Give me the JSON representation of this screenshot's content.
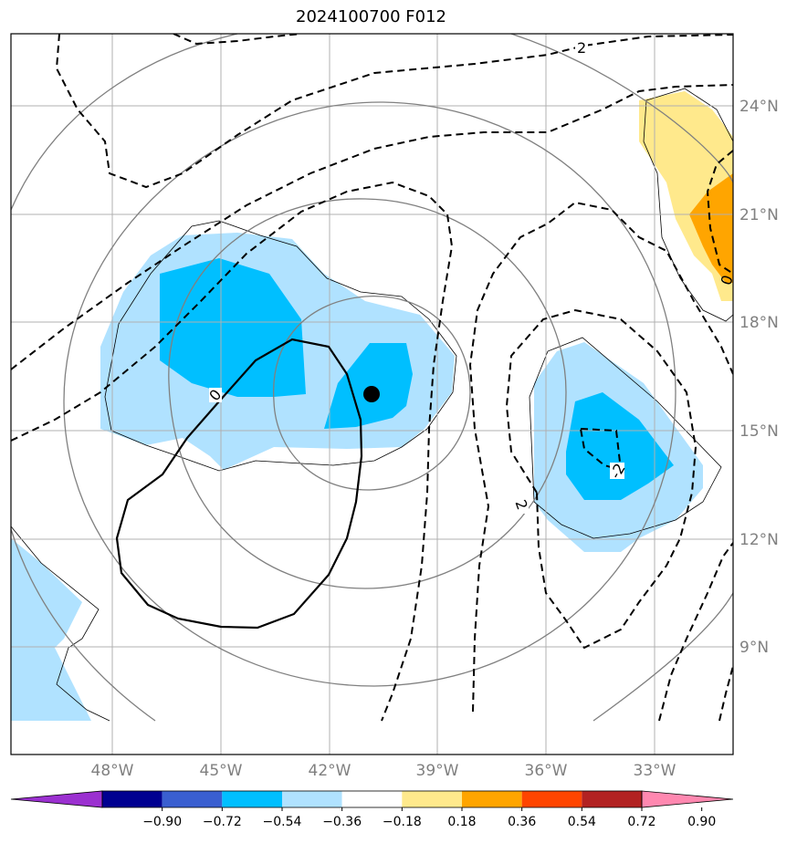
{
  "title": "2024100700 F012",
  "lon_ticks": [
    "48°W",
    "45°W",
    "42°W",
    "39°W",
    "36°W",
    "33°W"
  ],
  "lat_ticks": [
    "24°N",
    "21°N",
    "18°N",
    "15°N",
    "12°N",
    "9°N"
  ],
  "colorbar": {
    "tick_labels": [
      "−0.90",
      "−0.72",
      "−0.54",
      "−0.36",
      "−0.18",
      "0.18",
      "0.36",
      "0.54",
      "0.72",
      "0.90"
    ],
    "colors": [
      "#9b30d0",
      "#000090",
      "#3a5fd0",
      "#00bfff",
      "#b0e2ff",
      "#ffffff",
      "#ffe98c",
      "#ffa500",
      "#ff4500",
      "#b22222",
      "#ff88b0"
    ]
  },
  "contour_labels": [
    "2",
    "0",
    "0",
    "2",
    "-2"
  ],
  "colors": {
    "grid": "#b0b0b0",
    "contour_gray": "#808080",
    "tick_text": "#808080",
    "light_blue": "#b0e2ff",
    "deep_sky_blue": "#00bfff",
    "light_yellow": "#ffe98c",
    "orange": "#ffa500"
  }
}
